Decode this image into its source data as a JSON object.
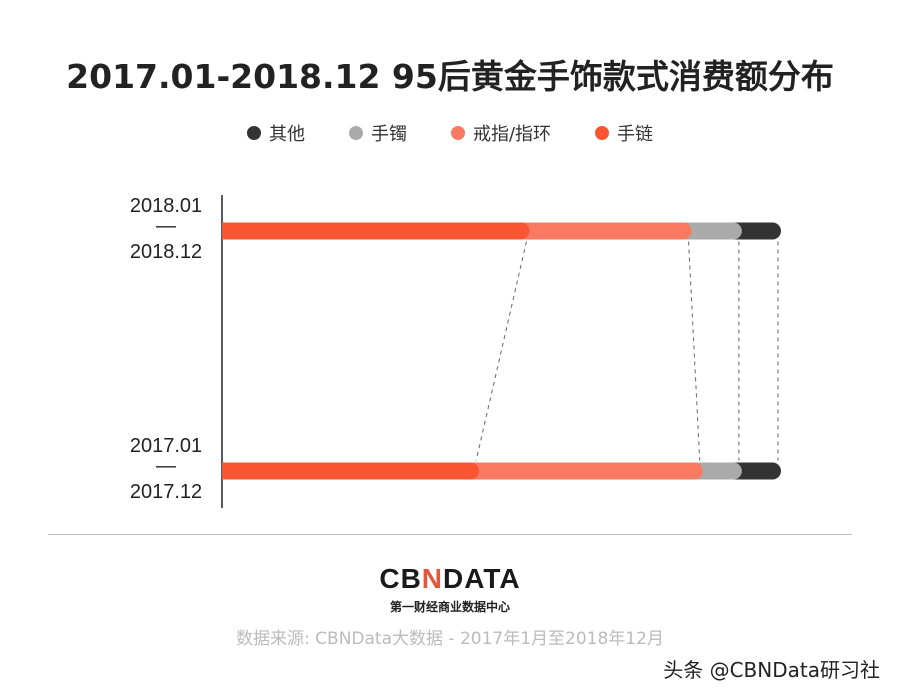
{
  "title": "2017.01-2018.12 95后黄金手饰款式消费额分布",
  "legend": [
    {
      "name": "其他",
      "color": "#333333"
    },
    {
      "name": "手镯",
      "color": "#aaaaaa"
    },
    {
      "name": "戒指/指环",
      "color": "#f87a63"
    },
    {
      "name": "手链",
      "color": "#fa5533"
    }
  ],
  "chart_data": {
    "type": "bar",
    "orientation": "horizontal",
    "stacked": "100%",
    "title": "2017.01-2018.12 95后黄金手饰款式消费额分布",
    "categories": [
      {
        "top": "2018.01",
        "mid": "—",
        "bottom": "2018.12"
      },
      {
        "top": "2017.01",
        "mid": "—",
        "bottom": "2017.12"
      }
    ],
    "series": [
      {
        "name": "手链",
        "color": "#fa5533",
        "values": [
          55,
          46
        ]
      },
      {
        "name": "戒指/指环",
        "color": "#f87a63",
        "values": [
          29,
          40
        ]
      },
      {
        "name": "手镯",
        "color": "#aaaaaa",
        "values": [
          9,
          7
        ]
      },
      {
        "name": "其他",
        "color": "#333333",
        "values": [
          7,
          7
        ]
      }
    ],
    "xlim": [
      0,
      100
    ],
    "grid": false,
    "legend_position": "top"
  },
  "footer": {
    "logo_left": "CB",
    "logo_n": "N",
    "logo_right": "DATA",
    "logo_sub": "第一财经商业数据中心",
    "source": "数据来源: CBNData大数据 - 2017年1月至2018年12月",
    "watermark": "头条 @CBNData研习社"
  }
}
